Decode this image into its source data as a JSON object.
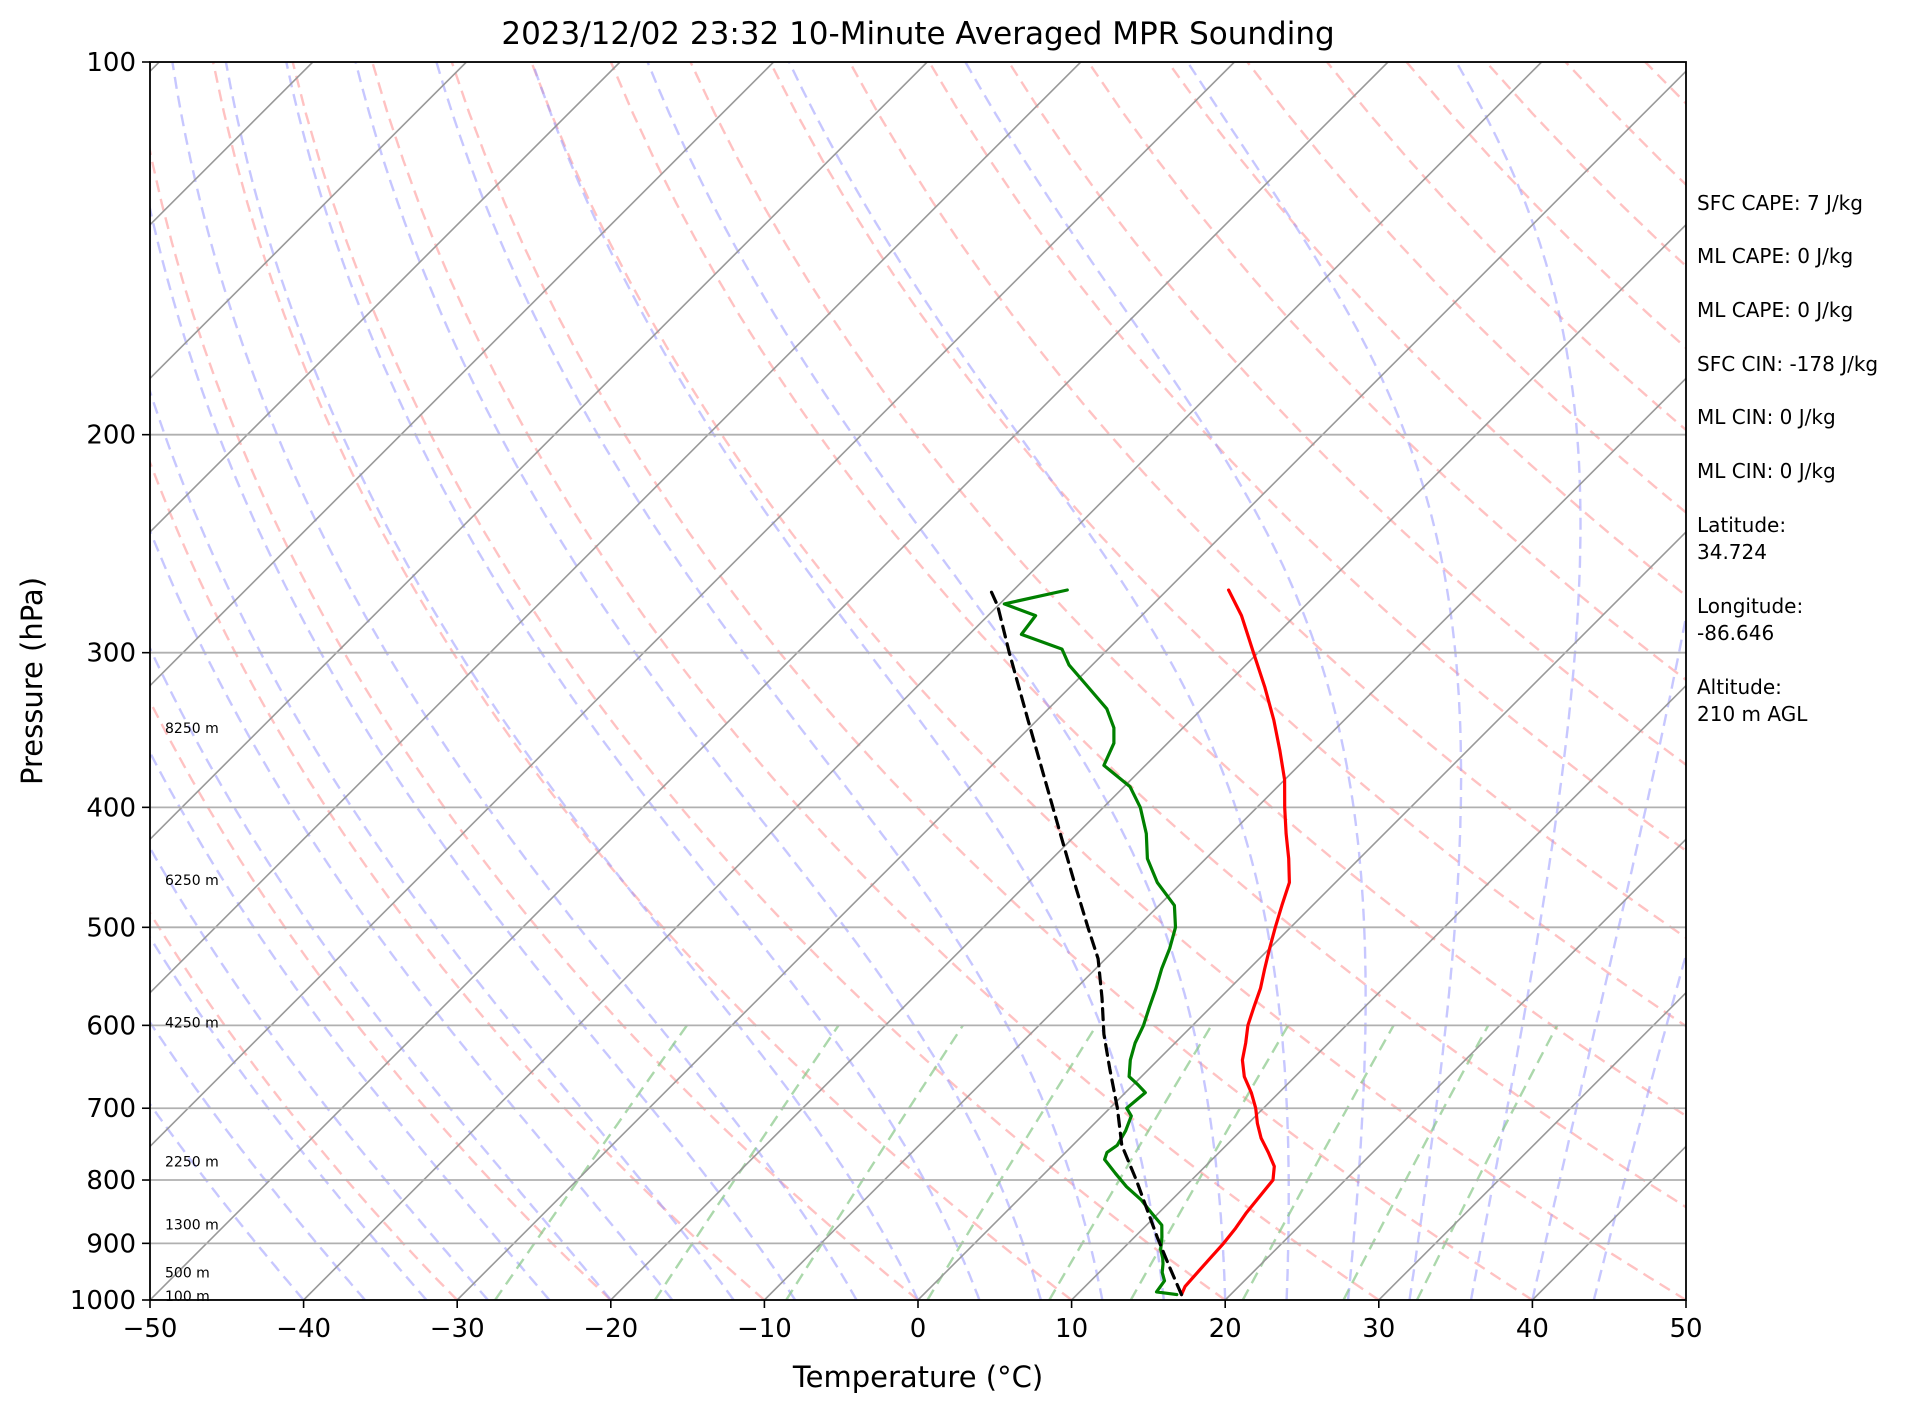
{
  "chart_data": {
    "type": "line",
    "title": "2023/12/02 23:32 10-Minute Averaged MPR Sounding",
    "xlabel": "Temperature (°C)",
    "ylabel": "Pressure (hPa)",
    "xlim": [
      -50,
      50
    ],
    "ylim": [
      1000,
      100
    ],
    "y_scale": "log",
    "skew": "skew-T",
    "x_ticks": [
      -50,
      -40,
      -30,
      -20,
      -10,
      0,
      10,
      20,
      30,
      40,
      50
    ],
    "x_tick_labels": [
      "−50",
      "−40",
      "−30",
      "−20",
      "−10",
      "0",
      "10",
      "20",
      "30",
      "40",
      "50"
    ],
    "y_ticks": [
      1000,
      900,
      800,
      700,
      600,
      500,
      400,
      300,
      200,
      100
    ],
    "y_tick_labels": [
      "1000",
      "900",
      "800",
      "700",
      "600",
      "500",
      "400",
      "300",
      "200",
      "100"
    ],
    "grid": true,
    "height_labels": [
      {
        "label": "8250 m",
        "p": 345
      },
      {
        "label": "6250 m",
        "p": 458
      },
      {
        "label": "4250 m",
        "p": 597
      },
      {
        "label": "2250 m",
        "p": 773
      },
      {
        "label": "1300 m",
        "p": 869
      },
      {
        "label": "500 m",
        "p": 950
      },
      {
        "label": "100 m",
        "p": 993
      }
    ],
    "colors": {
      "temperature": "#ff0000",
      "dewpoint": "#008000",
      "parcel": "#000000",
      "isotherm": "#999999",
      "dry_adiabat": "#ff9999",
      "moist_adiabat": "#9999ff",
      "mixing_ratio": "#88c888"
    },
    "series": [
      {
        "color": "#ff0000",
        "points": [
          [
            16.8,
            990
          ],
          [
            16.5,
            975
          ],
          [
            16.4,
            950
          ],
          [
            16.3,
            925
          ],
          [
            16.2,
            900
          ],
          [
            16.0,
            875
          ],
          [
            15.7,
            850
          ],
          [
            15.5,
            825
          ],
          [
            15.3,
            800
          ],
          [
            14.5,
            780
          ],
          [
            13.2,
            760
          ],
          [
            11.8,
            740
          ],
          [
            10.6,
            720
          ],
          [
            9.5,
            700
          ],
          [
            8.2,
            680
          ],
          [
            6.7,
            660
          ],
          [
            5.5,
            640
          ],
          [
            4.6,
            620
          ],
          [
            3.6,
            600
          ],
          [
            2.8,
            580
          ],
          [
            2.0,
            560
          ],
          [
            1.0,
            540
          ],
          [
            0.0,
            520
          ],
          [
            -1.0,
            500
          ],
          [
            -2.0,
            480
          ],
          [
            -3.0,
            460
          ],
          [
            -4.6,
            440
          ],
          [
            -6.4,
            420
          ],
          [
            -8.2,
            400
          ],
          [
            -10.0,
            380
          ],
          [
            -12.2,
            360
          ],
          [
            -14.6,
            340
          ],
          [
            -17.3,
            320
          ],
          [
            -20.3,
            300
          ],
          [
            -23.5,
            280
          ],
          [
            -26.0,
            267
          ]
        ]
      },
      {
        "color": "#008000",
        "points": [
          [
            16.5,
            990
          ],
          [
            15.0,
            985
          ],
          [
            14.8,
            965
          ],
          [
            14.1,
            950
          ],
          [
            13.6,
            935
          ],
          [
            13.2,
            925
          ],
          [
            12.5,
            910
          ],
          [
            11.8,
            890
          ],
          [
            11.0,
            870
          ],
          [
            9.5,
            850
          ],
          [
            8.0,
            830
          ],
          [
            6.2,
            810
          ],
          [
            4.6,
            790
          ],
          [
            3.0,
            770
          ],
          [
            2.7,
            760
          ],
          [
            2.9,
            750
          ],
          [
            2.5,
            730
          ],
          [
            1.9,
            710
          ],
          [
            1.1,
            700
          ],
          [
            1.2,
            690
          ],
          [
            1.3,
            680
          ],
          [
            0.3,
            670
          ],
          [
            -0.8,
            660
          ],
          [
            -1.8,
            640
          ],
          [
            -2.6,
            620
          ],
          [
            -3.2,
            600
          ],
          [
            -4.0,
            580
          ],
          [
            -4.8,
            560
          ],
          [
            -5.7,
            540
          ],
          [
            -6.5,
            520
          ],
          [
            -7.5,
            500
          ],
          [
            -9.0,
            480
          ],
          [
            -11.6,
            460
          ],
          [
            -13.8,
            440
          ],
          [
            -15.5,
            420
          ],
          [
            -17.6,
            400
          ],
          [
            -19.6,
            385
          ],
          [
            -22.7,
            370
          ],
          [
            -23.5,
            355
          ],
          [
            -24.5,
            345
          ],
          [
            -26.2,
            333
          ],
          [
            -29.2,
            318
          ],
          [
            -31.5,
            307
          ],
          [
            -33.0,
            298
          ],
          [
            -36.6,
            290
          ],
          [
            -36.9,
            280
          ],
          [
            -39.7,
            274
          ],
          [
            -36.5,
            267
          ]
        ]
      },
      {
        "color": "#000000",
        "dashed": true,
        "points": [
          [
            16.8,
            990
          ],
          [
            14.2,
            940
          ],
          [
            11.5,
            890
          ],
          [
            9.3,
            850
          ],
          [
            6.4,
            800
          ],
          [
            3.2,
            750
          ],
          [
            0.5,
            700
          ],
          [
            -2.6,
            650
          ],
          [
            -5.2,
            610
          ],
          [
            -7.7,
            570
          ],
          [
            -10.5,
            530
          ],
          [
            -13.2,
            500
          ],
          [
            -17.0,
            460
          ],
          [
            -21.1,
            420
          ],
          [
            -25.6,
            380
          ],
          [
            -30.6,
            340
          ],
          [
            -36.2,
            300
          ],
          [
            -40.0,
            275
          ],
          [
            -41.5,
            267
          ]
        ]
      }
    ]
  },
  "info": [
    "SFC CAPE: 7 J/kg",
    "ML CAPE: 0 J/kg",
    "ML CAPE: 0 J/kg",
    "SFC CIN: -178 J/kg",
    "ML CIN: 0 J/kg",
    "ML CIN: 0 J/kg",
    "Latitude:",
    "34.724",
    "Longitude:",
    "-86.646",
    "Altitude:",
    "210 m AGL"
  ]
}
